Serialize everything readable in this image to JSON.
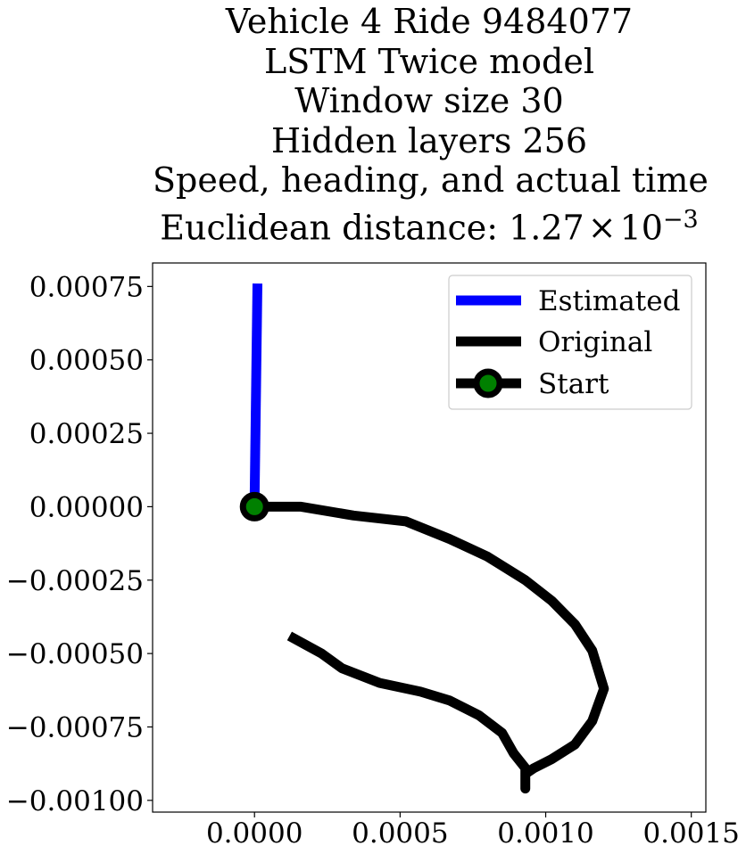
{
  "chart_data": {
    "type": "line",
    "title_lines": [
      "Vehicle 4 Ride 9484077",
      "LSTM Twice model",
      "Window size 30",
      "Hidden layers 256",
      "Speed, heading, and actual time"
    ],
    "title_metric_prefix": "Euclidean distance: ",
    "title_metric_mantissa": "1.27",
    "title_metric_times": "×",
    "title_metric_base": "10",
    "title_metric_exponent": "−3",
    "xlim": [
      -0.00035,
      0.00155
    ],
    "ylim": [
      -0.00104,
      0.00083
    ],
    "x_ticks": [
      0.0,
      0.0005,
      0.001,
      0.0015
    ],
    "x_tick_labels": [
      "0.0000",
      "0.0005",
      "0.0010",
      "0.0015"
    ],
    "y_ticks": [
      0.00075,
      0.0005,
      0.00025,
      0.0,
      -0.00025,
      -0.0005,
      -0.00075,
      -0.001
    ],
    "y_tick_labels": [
      "0.00075",
      "0.00050",
      "0.00025",
      "0.00000",
      "−0.00025",
      "−0.00050",
      "−0.00075",
      "−0.00100"
    ],
    "grid": false,
    "legend_position": "upper right",
    "series": [
      {
        "name": "Estimated",
        "color": "#0000ff",
        "points": [
          [
            0.0,
            0.0
          ],
          [
            1e-05,
            0.00076
          ]
        ]
      },
      {
        "name": "Original",
        "color": "#000000",
        "points": [
          [
            0.0,
            0.0
          ],
          [
            0.00016,
            0.0
          ],
          [
            0.00034,
            -3e-05
          ],
          [
            0.00052,
            -5e-05
          ],
          [
            0.00067,
            -0.00011
          ],
          [
            0.0008,
            -0.00017
          ],
          [
            0.00093,
            -0.00025
          ],
          [
            0.00102,
            -0.00032
          ],
          [
            0.0011,
            -0.0004
          ],
          [
            0.00116,
            -0.00049
          ],
          [
            0.0012,
            -0.00062
          ],
          [
            0.00116,
            -0.00073
          ],
          [
            0.0011,
            -0.00081
          ],
          [
            0.00102,
            -0.00086
          ],
          [
            0.00096,
            -0.00089
          ],
          [
            0.00093,
            -0.00091
          ],
          [
            0.00093,
            -0.00096
          ],
          [
            0.00093,
            -0.00089
          ],
          [
            0.00089,
            -0.00084
          ],
          [
            0.00085,
            -0.00077
          ],
          [
            0.00077,
            -0.00071
          ],
          [
            0.00067,
            -0.00066
          ],
          [
            0.00057,
            -0.00063
          ],
          [
            0.00043,
            -0.0006
          ],
          [
            0.0003,
            -0.00055
          ],
          [
            0.00023,
            -0.0005
          ],
          [
            0.00012,
            -0.00044
          ]
        ]
      },
      {
        "name": "Start",
        "color": "#008000",
        "points": [
          [
            0.0,
            0.0
          ]
        ]
      }
    ]
  }
}
